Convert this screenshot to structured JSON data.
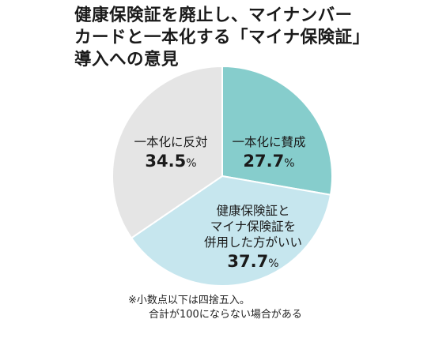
{
  "title_lines": [
    "健康保険証を廃止し、マイナンバー",
    "カードと一本化する「マイナ保険証」",
    "導入への意見"
  ],
  "note_lines": [
    "※小数点以下は四捨五入。",
    "合計が100にならない場合がある"
  ],
  "chart_data": {
    "type": "pie",
    "unit": "%",
    "slices": [
      {
        "label_lines": [
          "一本化に賛成"
        ],
        "value": 27.7,
        "value_text": "27.7",
        "color": "#86cdcc"
      },
      {
        "label_lines": [
          "健康保険証と",
          "マイナ保険証を",
          "併用した方がいい"
        ],
        "value": 37.7,
        "value_text": "37.7",
        "color": "#c6e6ee"
      },
      {
        "label_lines": [
          "一本化に反対"
        ],
        "value": 34.5,
        "value_text": "34.5",
        "color": "#e5e5e5"
      }
    ]
  }
}
